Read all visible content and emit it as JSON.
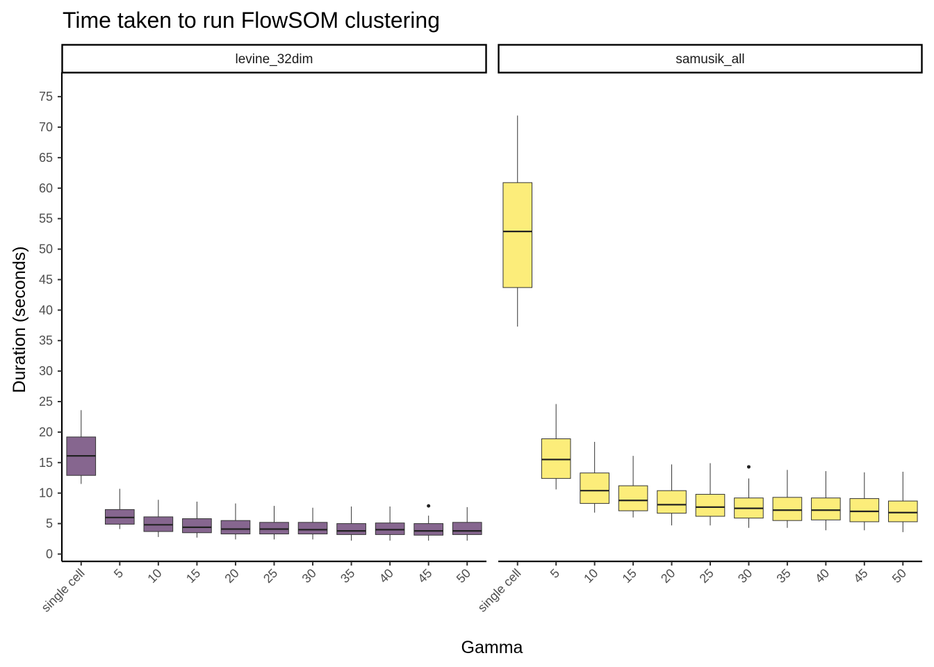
{
  "chart_data": {
    "type": "boxplot",
    "title": "Time taken to run FlowSOM clustering",
    "xlabel": "Gamma",
    "ylabel": "Duration (seconds)",
    "ylim": [
      -1.2,
      79
    ],
    "yticks": [
      0,
      5,
      10,
      15,
      20,
      25,
      30,
      35,
      40,
      45,
      50,
      55,
      60,
      65,
      70,
      75
    ],
    "categories": [
      "single cell",
      "5",
      "10",
      "15",
      "20",
      "25",
      "30",
      "35",
      "40",
      "45",
      "50"
    ],
    "grid": false,
    "legend": "none",
    "panels": [
      {
        "name": "levine_32dim",
        "fill": "#86668f",
        "boxes": [
          {
            "min": 11.5,
            "q1": 12.9,
            "median": 16.1,
            "q3": 19.2,
            "max": 23.6,
            "outliers": []
          },
          {
            "min": 4.1,
            "q1": 4.9,
            "median": 6.0,
            "q3": 7.3,
            "max": 10.7,
            "outliers": []
          },
          {
            "min": 2.8,
            "q1": 3.7,
            "median": 4.8,
            "q3": 6.1,
            "max": 8.9,
            "outliers": []
          },
          {
            "min": 2.7,
            "q1": 3.5,
            "median": 4.4,
            "q3": 5.8,
            "max": 8.6,
            "outliers": []
          },
          {
            "min": 2.4,
            "q1": 3.3,
            "median": 4.1,
            "q3": 5.5,
            "max": 8.3,
            "outliers": []
          },
          {
            "min": 2.4,
            "q1": 3.3,
            "median": 4.1,
            "q3": 5.2,
            "max": 7.9,
            "outliers": []
          },
          {
            "min": 2.4,
            "q1": 3.3,
            "median": 4.0,
            "q3": 5.2,
            "max": 7.6,
            "outliers": []
          },
          {
            "min": 2.2,
            "q1": 3.2,
            "median": 3.8,
            "q3": 5.0,
            "max": 7.8,
            "outliers": []
          },
          {
            "min": 2.2,
            "q1": 3.2,
            "median": 4.0,
            "q3": 5.1,
            "max": 7.8,
            "outliers": []
          },
          {
            "min": 2.2,
            "q1": 3.1,
            "median": 3.8,
            "q3": 5.0,
            "max": 6.3,
            "outliers": [
              7.9
            ]
          },
          {
            "min": 2.2,
            "q1": 3.2,
            "median": 3.8,
            "q3": 5.2,
            "max": 7.7,
            "outliers": []
          }
        ]
      },
      {
        "name": "samusik_all",
        "fill": "#fced7a",
        "boxes": [
          {
            "min": 37.3,
            "q1": 43.7,
            "median": 52.9,
            "q3": 60.9,
            "max": 71.9,
            "outliers": []
          },
          {
            "min": 10.6,
            "q1": 12.4,
            "median": 15.5,
            "q3": 18.9,
            "max": 24.6,
            "outliers": []
          },
          {
            "min": 6.8,
            "q1": 8.3,
            "median": 10.4,
            "q3": 13.3,
            "max": 18.4,
            "outliers": []
          },
          {
            "min": 6.0,
            "q1": 7.1,
            "median": 8.8,
            "q3": 11.2,
            "max": 16.1,
            "outliers": []
          },
          {
            "min": 4.7,
            "q1": 6.7,
            "median": 8.1,
            "q3": 10.4,
            "max": 14.7,
            "outliers": []
          },
          {
            "min": 4.7,
            "q1": 6.2,
            "median": 7.7,
            "q3": 9.8,
            "max": 14.9,
            "outliers": []
          },
          {
            "min": 4.3,
            "q1": 5.9,
            "median": 7.5,
            "q3": 9.2,
            "max": 12.4,
            "outliers": [
              14.3
            ]
          },
          {
            "min": 4.3,
            "q1": 5.5,
            "median": 7.2,
            "q3": 9.3,
            "max": 13.8,
            "outliers": []
          },
          {
            "min": 3.9,
            "q1": 5.6,
            "median": 7.2,
            "q3": 9.2,
            "max": 13.6,
            "outliers": []
          },
          {
            "min": 3.9,
            "q1": 5.3,
            "median": 7.0,
            "q3": 9.1,
            "max": 13.4,
            "outliers": []
          },
          {
            "min": 3.6,
            "q1": 5.3,
            "median": 6.8,
            "q3": 8.7,
            "max": 13.5,
            "outliers": []
          }
        ]
      }
    ]
  }
}
